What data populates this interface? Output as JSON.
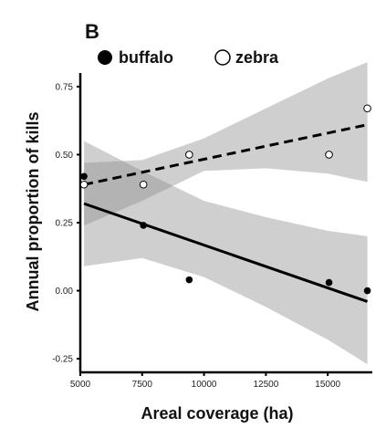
{
  "chart_data": {
    "type": "scatter",
    "panel_label": "B",
    "xlabel": "Areal coverage (ha)",
    "ylabel": "Annual proportion of kills",
    "xlim": [
      5000,
      16800
    ],
    "ylim": [
      -0.3,
      0.8
    ],
    "x_ticks": [
      5000,
      7500,
      10000,
      12500,
      15000
    ],
    "x_tick_labels": [
      "5000",
      "7500",
      "10000",
      "12500",
      "15000"
    ],
    "y_ticks": [
      -0.25,
      0.0,
      0.25,
      0.5,
      0.75
    ],
    "y_tick_labels": [
      "-0.25",
      "0.00",
      "0.25",
      "0.50",
      "0.75"
    ],
    "legend_placement": "top-left",
    "grid": false,
    "series": [
      {
        "name": "buffalo",
        "marker": "filled-circle",
        "line_style": "solid",
        "color": "#000000",
        "points": [
          {
            "x": 5150,
            "y": 0.42
          },
          {
            "x": 7550,
            "y": 0.24
          },
          {
            "x": 9400,
            "y": 0.04
          },
          {
            "x": 15050,
            "y": 0.03
          },
          {
            "x": 16600,
            "y": 0.0
          }
        ],
        "fit": {
          "x": [
            5150,
            16600
          ],
          "y": [
            0.32,
            -0.04
          ]
        },
        "ci_upper": {
          "x": [
            5150,
            7500,
            10000,
            12500,
            15000,
            16600
          ],
          "y": [
            0.55,
            0.44,
            0.33,
            0.27,
            0.22,
            0.2
          ]
        },
        "ci_lower": {
          "x": [
            5150,
            7500,
            10000,
            12500,
            15000,
            16600
          ],
          "y": [
            0.09,
            0.12,
            0.05,
            -0.06,
            -0.18,
            -0.27
          ]
        }
      },
      {
        "name": "zebra",
        "marker": "open-circle",
        "line_style": "dashed",
        "color": "#000000",
        "points": [
          {
            "x": 5150,
            "y": 0.39
          },
          {
            "x": 7550,
            "y": 0.39
          },
          {
            "x": 9400,
            "y": 0.5
          },
          {
            "x": 15050,
            "y": 0.5
          },
          {
            "x": 16600,
            "y": 0.67
          }
        ],
        "fit": {
          "x": [
            5150,
            16600
          ],
          "y": [
            0.39,
            0.61
          ]
        },
        "ci_upper": {
          "x": [
            5150,
            7500,
            10000,
            12500,
            15000,
            16600
          ],
          "y": [
            0.47,
            0.48,
            0.56,
            0.67,
            0.78,
            0.84
          ]
        },
        "ci_lower": {
          "x": [
            5150,
            7500,
            10000,
            12500,
            15000,
            16600
          ],
          "y": [
            0.24,
            0.33,
            0.44,
            0.45,
            0.43,
            0.4
          ]
        }
      }
    ]
  }
}
